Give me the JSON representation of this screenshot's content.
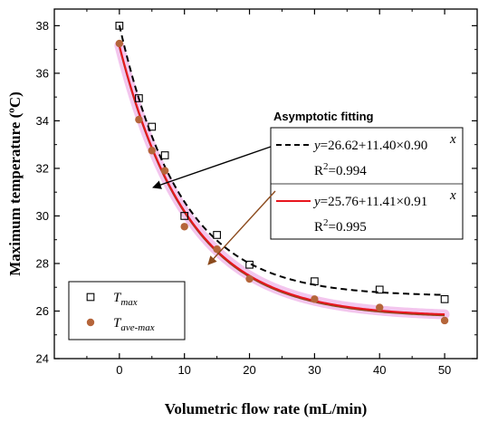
{
  "chart_data": {
    "type": "scatter",
    "title": "",
    "xlabel": "Volumetric flow rate (mL/min)",
    "ylabel": "Maximum temperature (ºC)",
    "xlim": [
      -10,
      55
    ],
    "ylim": [
      24,
      38.7
    ],
    "x_ticks": [
      0,
      10,
      20,
      30,
      40,
      50
    ],
    "y_ticks": [
      24,
      26,
      28,
      30,
      32,
      34,
      36,
      38
    ],
    "series": [
      {
        "name": "Tmax",
        "name_main": "T",
        "name_sub": "max",
        "marker": "open-square",
        "color": "#000000",
        "x": [
          0,
          3,
          5,
          7,
          10,
          15,
          20,
          30,
          40,
          50
        ],
        "y": [
          38.0,
          34.95,
          33.75,
          32.55,
          30.0,
          29.2,
          27.95,
          27.25,
          26.9,
          26.5
        ]
      },
      {
        "name": "Tave-max",
        "name_main": "T",
        "name_sub": "ave-max",
        "marker": "filled-circle",
        "color": "#b5653a",
        "x": [
          0,
          3,
          5,
          7,
          10,
          15,
          20,
          30,
          40,
          50
        ],
        "y": [
          37.25,
          34.05,
          32.75,
          31.9,
          29.55,
          28.6,
          27.35,
          26.5,
          26.15,
          25.6
        ]
      }
    ],
    "fits": [
      {
        "label": "y=26.62+11.40×0.90",
        "superscript": "x",
        "r2_base": "R",
        "r2_exp": "2",
        "r2_value": "=0.994",
        "a": 26.62,
        "b": 11.4,
        "c": 0.9,
        "style": "dashed",
        "color": "#000000"
      },
      {
        "label": "y=25.76+11.41×0.91",
        "superscript": "x",
        "r2_base": "R",
        "r2_exp": "2",
        "r2_value": "=0.995",
        "a": 25.76,
        "b": 11.41,
        "c": 0.91,
        "style": "solid",
        "color": "#e8161e",
        "band_color": "#f3c6ee",
        "lower_color": "#8b4a1c"
      }
    ],
    "annotation": "Asymptotic fitting",
    "legend_position": "bottom-left",
    "grid": false
  }
}
